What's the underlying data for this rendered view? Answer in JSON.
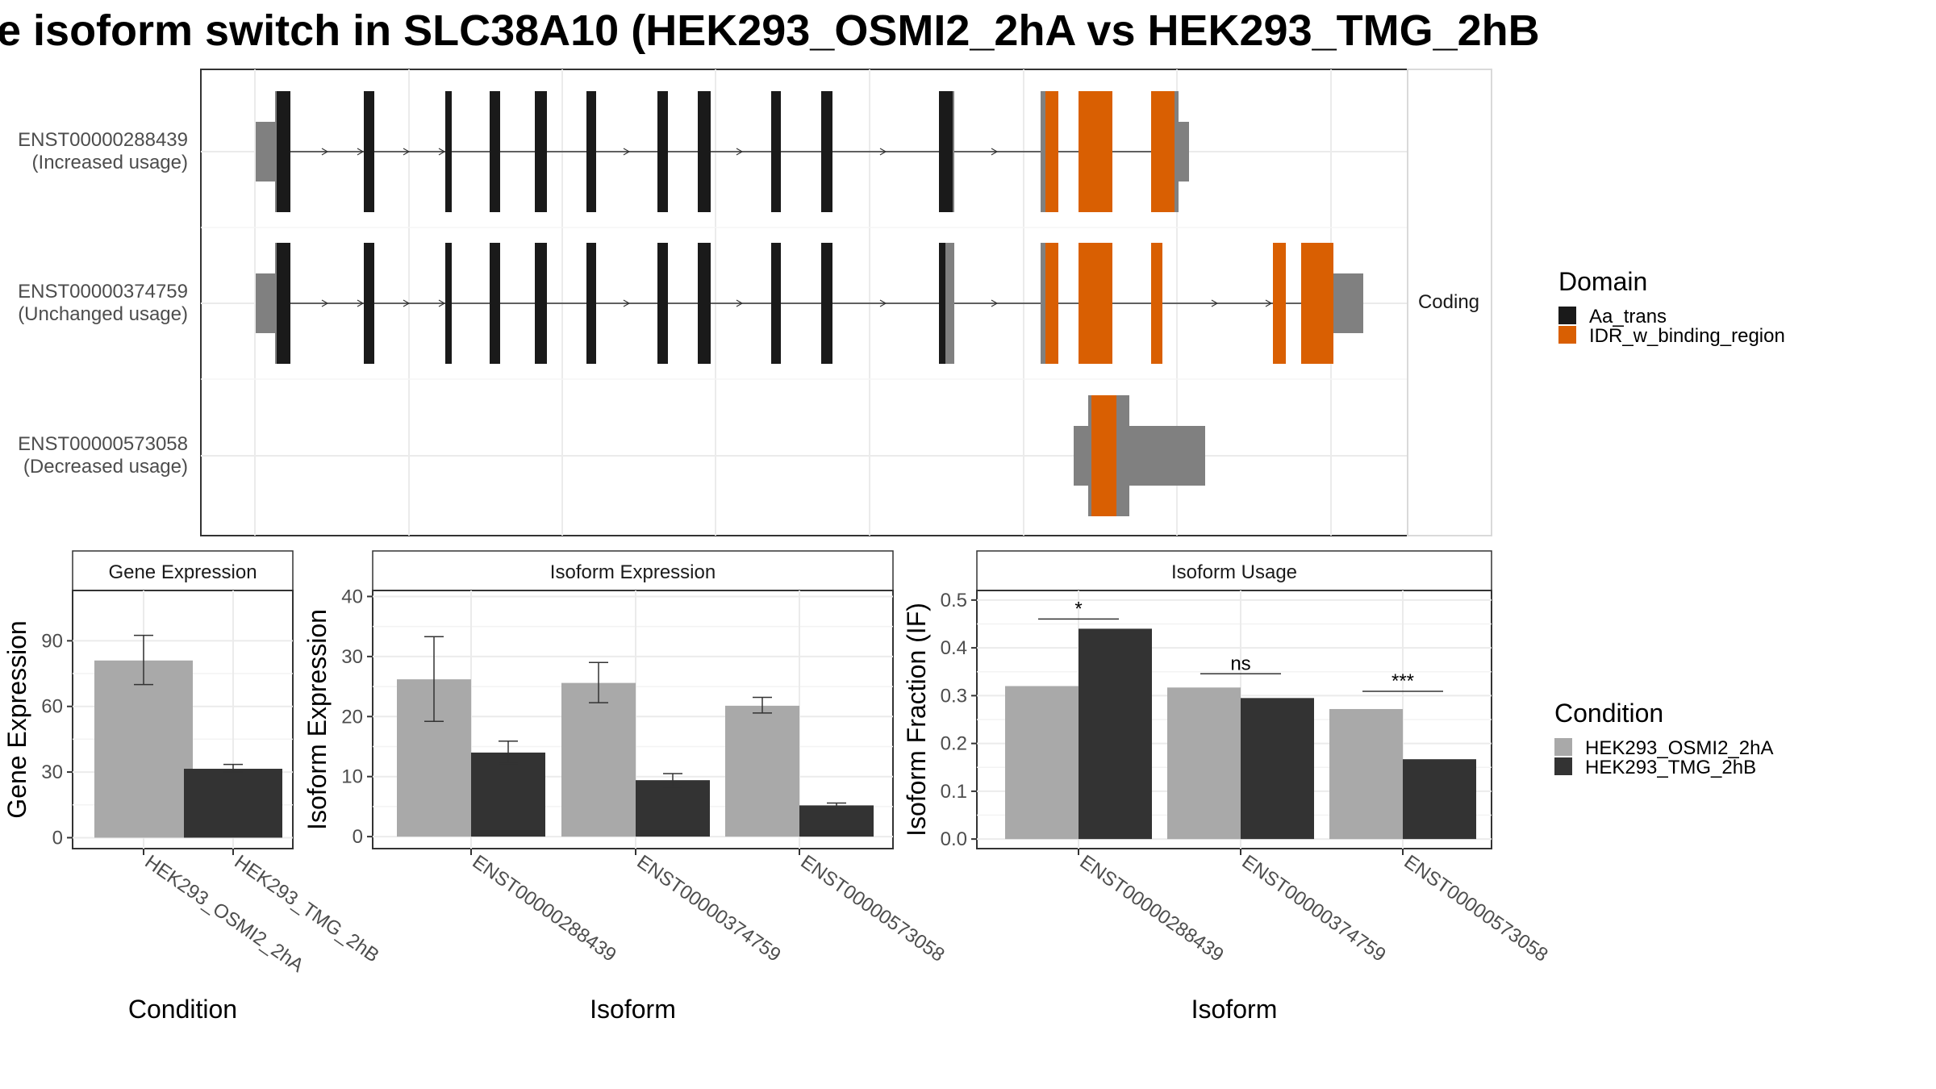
{
  "title": "e isoform switch in SLC38A10 (HEK293_OSMI2_2hA vs HEK293_TMG_2hB",
  "colors": {
    "aa_trans": "#1a1a1a",
    "idr": "#d95f02",
    "utr": "#808080",
    "cond_a": "#a9a9a9",
    "cond_b": "#333333"
  },
  "structure": {
    "facet_label": "Coding",
    "transcripts": [
      {
        "id": "ENST00000288439",
        "usage": "(Increased usage)"
      },
      {
        "id": "ENST00000374759",
        "usage": "(Unchanged usage)"
      },
      {
        "id": "ENST00000573058",
        "usage": "(Decreased usage)"
      }
    ]
  },
  "legend_domain": {
    "title": "Domain",
    "items": [
      "Aa_trans",
      "IDR_w_binding_region"
    ]
  },
  "legend_condition": {
    "title": "Condition",
    "items": [
      "HEK293_OSMI2_2hA",
      "HEK293_TMG_2hB"
    ]
  },
  "chart_data": [
    {
      "type": "bar",
      "title": "Gene Expression",
      "xlabel": "Condition",
      "ylabel": "Gene Expression",
      "categories": [
        "HEK293_OSMI2_2hA",
        "HEK293_TMG_2hB"
      ],
      "values": [
        81,
        31.5
      ],
      "errors": [
        [
          70,
          92.5
        ],
        [
          30,
          33.5
        ]
      ],
      "ylim": [
        -5,
        113
      ],
      "yticks": [
        0,
        30,
        60,
        90
      ]
    },
    {
      "type": "bar",
      "title": "Isoform Expression",
      "xlabel": "Isoform",
      "ylabel": "Isoform Expression",
      "categories": [
        "ENST00000288439",
        "ENST00000374759",
        "ENST00000573058"
      ],
      "series": [
        {
          "name": "HEK293_OSMI2_2hA",
          "values": [
            26.2,
            25.6,
            21.8
          ],
          "errors": [
            [
              19.2,
              33.3
            ],
            [
              22.3,
              29.0
            ],
            [
              20.6,
              23.2
            ]
          ]
        },
        {
          "name": "HEK293_TMG_2hB",
          "values": [
            14.0,
            9.4,
            5.2
          ],
          "errors": [
            [
              12.2,
              15.9
            ],
            [
              8.3,
              10.5
            ],
            [
              4.8,
              5.6
            ]
          ]
        }
      ],
      "ylim": [
        -2,
        41
      ],
      "yticks": [
        0,
        10,
        20,
        30,
        40
      ]
    },
    {
      "type": "bar",
      "title": "Isoform Usage",
      "xlabel": "Isoform",
      "ylabel": "Isoform Fraction (IF)",
      "categories": [
        "ENST00000288439",
        "ENST00000374759",
        "ENST00000573058"
      ],
      "series": [
        {
          "name": "HEK293_OSMI2_2hA",
          "values": [
            0.32,
            0.317,
            0.272
          ]
        },
        {
          "name": "HEK293_TMG_2hB",
          "values": [
            0.44,
            0.295,
            0.167
          ]
        }
      ],
      "significance": [
        "*",
        "ns",
        "***"
      ],
      "ylim": [
        -0.02,
        0.52
      ],
      "yticks": [
        "0.0",
        "0.1",
        "0.2",
        "0.3",
        "0.4",
        "0.5"
      ]
    }
  ]
}
